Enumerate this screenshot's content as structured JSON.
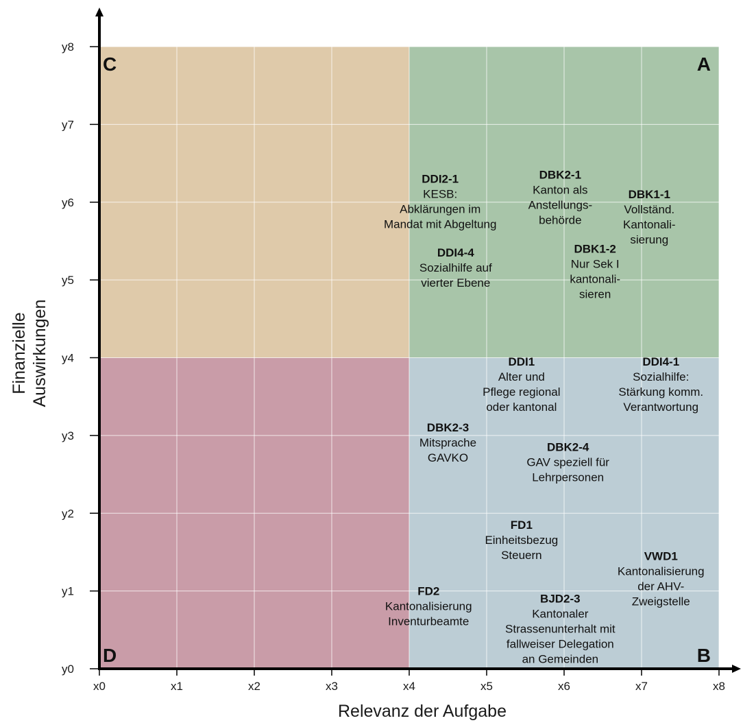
{
  "chart_data": {
    "type": "scatter",
    "title": "",
    "xlabel": "Relevanz der Aufgabe",
    "ylabel_lines": [
      "Finanzielle",
      "Auswirkungen"
    ],
    "x_ticks": [
      "x0",
      "x1",
      "x2",
      "x3",
      "x4",
      "x5",
      "x6",
      "x7",
      "x8"
    ],
    "y_ticks": [
      "y0",
      "y1",
      "y2",
      "y3",
      "y4",
      "y5",
      "y6",
      "y7",
      "y8"
    ],
    "xlim": [
      0,
      8
    ],
    "ylim": [
      0,
      8
    ],
    "grid": true,
    "quadrants": [
      {
        "label": "C",
        "x_range": [
          0,
          4
        ],
        "y_range": [
          4,
          8
        ],
        "color": "#dfcaaa"
      },
      {
        "label": "A",
        "x_range": [
          4,
          8
        ],
        "y_range": [
          4,
          8
        ],
        "color": "#a8c5a9"
      },
      {
        "label": "D",
        "x_range": [
          0,
          4
        ],
        "y_range": [
          0,
          4
        ],
        "color": "#c99ca8"
      },
      {
        "label": "B",
        "x_range": [
          4,
          8
        ],
        "y_range": [
          0,
          4
        ],
        "color": "#bccdd5"
      }
    ],
    "items": [
      {
        "code": "DDI2-1",
        "desc": [
          "KESB:",
          "Abklärungen im",
          "Mandat mit Abgeltung"
        ],
        "x": 4.4,
        "y": 6.25
      },
      {
        "code": "DBK2-1",
        "desc": [
          "Kanton als",
          "Anstellungs-",
          "behörde"
        ],
        "x": 5.95,
        "y": 6.3
      },
      {
        "code": "DBK1-1",
        "desc": [
          "Vollständ.",
          "Kantonali-",
          "sierung"
        ],
        "x": 7.1,
        "y": 6.05
      },
      {
        "code": "DDI4-4",
        "desc": [
          "Sozialhilfe auf",
          "vierter Ebene"
        ],
        "x": 4.6,
        "y": 5.3
      },
      {
        "code": "DBK1-2",
        "desc": [
          "Nur Sek I",
          "kantonali-",
          "sieren"
        ],
        "x": 6.4,
        "y": 5.35
      },
      {
        "code": "DDI4-1",
        "desc": [
          "Sozialhilfe:",
          "Stärkung komm.",
          "Verantwortung"
        ],
        "x": 7.25,
        "y": 3.9
      },
      {
        "code": "DDI1",
        "desc": [
          "Alter und",
          "Pflege regional",
          "oder kantonal"
        ],
        "x": 5.45,
        "y": 3.9
      },
      {
        "code": "DBK2-3",
        "desc": [
          "Mitsprache",
          "GAVKO"
        ],
        "x": 4.5,
        "y": 3.05
      },
      {
        "code": "DBK2-4",
        "desc": [
          "GAV speziell für",
          "Lehrpersonen"
        ],
        "x": 6.05,
        "y": 2.8
      },
      {
        "code": "FD1",
        "desc": [
          "Einheitsbezug",
          "Steuern"
        ],
        "x": 5.45,
        "y": 1.8
      },
      {
        "code": "VWD1",
        "desc": [
          "Kantonalisierung",
          "der AHV-",
          "Zweigstelle"
        ],
        "x": 7.25,
        "y": 1.4
      },
      {
        "code": "FD2",
        "desc": [
          "Kantonalisierung",
          "Inventurbeamte"
        ],
        "x": 4.25,
        "y": 0.95
      },
      {
        "code": "BJD2-3",
        "desc": [
          "Kantonaler",
          "Strassenunterhalt mit",
          "fallweiser Delegation",
          "an Gemeinden"
        ],
        "x": 5.95,
        "y": 0.85
      }
    ],
    "colors": {
      "grid": "#ffffff",
      "axis": "#000000",
      "text": "#111111"
    }
  }
}
